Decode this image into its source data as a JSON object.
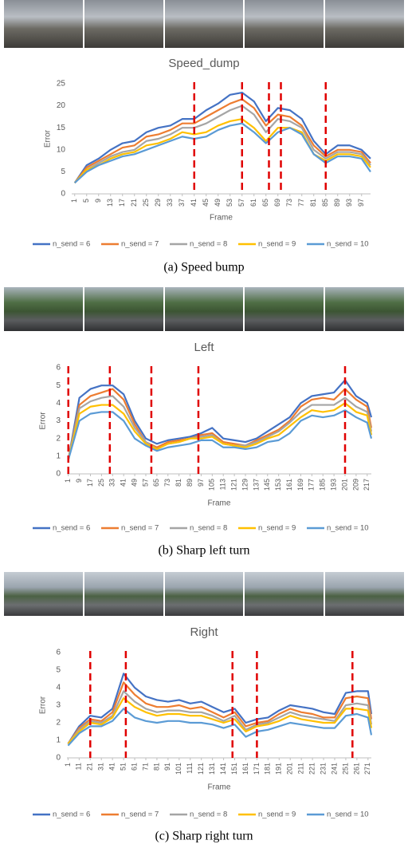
{
  "chart_data": [
    {
      "type": "line",
      "title": "Speed_dump",
      "caption": "(a) Speed bump",
      "x_label": "Frame",
      "y_label": "Error",
      "grid": false,
      "legend": "bottom",
      "x": [
        1,
        5,
        9,
        13,
        17,
        21,
        25,
        29,
        33,
        37,
        41,
        45,
        49,
        53,
        57,
        61,
        65,
        69,
        73,
        77,
        81,
        85,
        89,
        93,
        97,
        100
      ],
      "xlim": [
        0,
        100
      ],
      "ylim": [
        0,
        25
      ],
      "yticks": [
        0,
        5,
        10,
        15,
        20,
        25
      ],
      "xticks": [
        1,
        5,
        9,
        13,
        17,
        21,
        25,
        29,
        33,
        37,
        41,
        45,
        49,
        53,
        57,
        61,
        65,
        69,
        73,
        77,
        81,
        85,
        89,
        93,
        97
      ],
      "markers": {
        "values": [
          41,
          57,
          66,
          70,
          85
        ],
        "color": "#e00000"
      },
      "series": [
        {
          "name": "n_send = 6",
          "color": "#4472c4",
          "values": [
            2.5,
            6.5,
            8,
            10,
            11.5,
            12,
            14,
            15,
            15.5,
            17,
            17,
            19,
            20.5,
            22.5,
            23,
            21,
            16.5,
            19.5,
            19,
            17,
            12,
            9,
            11,
            11,
            10,
            8
          ]
        },
        {
          "name": "n_send = 7",
          "color": "#ed7d31",
          "values": [
            2.5,
            6,
            7.5,
            9,
            10.5,
            11,
            13,
            13.5,
            14.5,
            16,
            16,
            17.5,
            19,
            20.5,
            21.5,
            19.5,
            15.5,
            18,
            17.5,
            15.5,
            11,
            8.5,
            10,
            10,
            9.5,
            7
          ]
        },
        {
          "name": "n_send = 8",
          "color": "#a5a5a5",
          "values": [
            2.5,
            5.5,
            7,
            8.5,
            9.5,
            10,
            12,
            12.5,
            13.5,
            15,
            15,
            16,
            17.5,
            19,
            20,
            18,
            14,
            17,
            16.5,
            15,
            10,
            8,
            9.5,
            9.5,
            9,
            6.5
          ]
        },
        {
          "name": "n_send = 9",
          "color": "#ffc000",
          "values": [
            2.5,
            5.5,
            6.5,
            8,
            9,
            9.5,
            11,
            11.5,
            12.5,
            14,
            13.5,
            14,
            15.5,
            16.5,
            17,
            15,
            12,
            15,
            15,
            14,
            9,
            7.5,
            9,
            9,
            8.5,
            6
          ]
        },
        {
          "name": "n_send = 10",
          "color": "#5b9bd5",
          "values": [
            2.5,
            5,
            6.5,
            7.5,
            8.5,
            9,
            10,
            11,
            12,
            13,
            12.5,
            13,
            14.5,
            15.5,
            16,
            14,
            11.5,
            14,
            15,
            13.5,
            9,
            7,
            8.5,
            8.5,
            8,
            5
          ]
        }
      ]
    },
    {
      "type": "line",
      "title": "Left",
      "caption": "(b) Sharp left turn",
      "x_label": "Frame",
      "y_label": "Error",
      "grid": false,
      "legend": "bottom",
      "x": [
        1,
        9,
        17,
        25,
        33,
        41,
        49,
        57,
        65,
        73,
        81,
        89,
        97,
        105,
        113,
        121,
        129,
        137,
        145,
        153,
        161,
        169,
        177,
        185,
        193,
        201,
        209,
        217,
        220
      ],
      "xlim": [
        0,
        220
      ],
      "ylim": [
        0,
        6
      ],
      "yticks": [
        0,
        1,
        2,
        3,
        4,
        5,
        6
      ],
      "xticks": [
        1,
        9,
        17,
        25,
        33,
        41,
        49,
        57,
        65,
        73,
        81,
        89,
        97,
        105,
        113,
        121,
        129,
        137,
        145,
        153,
        161,
        169,
        177,
        185,
        193,
        201,
        209,
        217
      ],
      "markers": {
        "values": [
          1,
          31,
          61,
          95,
          201
        ],
        "color": "#e00000"
      },
      "series": [
        {
          "name": "n_send = 6",
          "color": "#4472c4",
          "values": [
            0.8,
            4.3,
            4.8,
            5,
            5,
            4.5,
            3,
            2,
            1.7,
            1.9,
            2,
            2.1,
            2.3,
            2.6,
            2,
            1.9,
            1.8,
            2,
            2.4,
            2.8,
            3.2,
            4,
            4.4,
            4.5,
            4.6,
            5.3,
            4.4,
            4,
            3.2
          ]
        },
        {
          "name": "n_send = 7",
          "color": "#ed7d31",
          "values": [
            0.8,
            3.9,
            4.4,
            4.6,
            4.8,
            4.2,
            2.8,
            1.8,
            1.5,
            1.8,
            1.9,
            2,
            2.2,
            2.3,
            1.8,
            1.7,
            1.6,
            1.9,
            2.2,
            2.5,
            3,
            3.8,
            4.2,
            4.3,
            4.2,
            4.8,
            4.2,
            3.8,
            2.6
          ]
        },
        {
          "name": "n_send = 8",
          "color": "#a5a5a5",
          "values": [
            0.8,
            3.7,
            4.1,
            4.3,
            4.4,
            3.8,
            2.6,
            1.8,
            1.4,
            1.7,
            1.8,
            2,
            2.1,
            2.2,
            1.7,
            1.6,
            1.6,
            1.8,
            2.1,
            2.4,
            2.9,
            3.5,
            3.9,
            3.9,
            3.9,
            4.3,
            3.8,
            3.5,
            2.4
          ]
        },
        {
          "name": "n_send = 9",
          "color": "#ffc000",
          "values": [
            0.8,
            3.4,
            3.8,
            3.9,
            3.9,
            3.4,
            2.4,
            1.7,
            1.4,
            1.7,
            1.8,
            2,
            2,
            2.1,
            1.7,
            1.6,
            1.5,
            1.7,
            2,
            2.2,
            2.7,
            3.2,
            3.6,
            3.5,
            3.6,
            4,
            3.5,
            3.3,
            2.2
          ]
        },
        {
          "name": "n_send = 10",
          "color": "#5b9bd5",
          "values": [
            0.8,
            3,
            3.4,
            3.5,
            3.5,
            3,
            2,
            1.6,
            1.3,
            1.5,
            1.6,
            1.7,
            1.9,
            1.9,
            1.5,
            1.5,
            1.4,
            1.5,
            1.8,
            1.9,
            2.3,
            3,
            3.3,
            3.2,
            3.3,
            3.6,
            3.2,
            2.9,
            2
          ]
        }
      ]
    },
    {
      "type": "line",
      "title": "Right",
      "caption": "(c) Sharp right turn",
      "x_label": "Frame",
      "y_label": "Error",
      "grid": false,
      "legend": "bottom",
      "x": [
        1,
        11,
        21,
        31,
        41,
        51,
        61,
        71,
        81,
        91,
        101,
        111,
        121,
        131,
        141,
        151,
        161,
        171,
        181,
        191,
        201,
        211,
        221,
        231,
        241,
        251,
        261,
        271,
        274
      ],
      "xlim": [
        0,
        274
      ],
      "ylim": [
        0,
        6
      ],
      "yticks": [
        0,
        1,
        2,
        3,
        4,
        5,
        6
      ],
      "xticks": [
        1,
        11,
        21,
        31,
        41,
        51,
        61,
        71,
        81,
        91,
        101,
        111,
        121,
        131,
        141,
        151,
        161,
        171,
        181,
        191,
        201,
        211,
        221,
        231,
        241,
        251,
        261,
        271
      ],
      "markers": {
        "values": [
          21,
          53,
          149,
          171,
          257
        ],
        "color": "#e00000"
      },
      "series": [
        {
          "name": "n_send = 6",
          "color": "#4472c4",
          "values": [
            0.8,
            1.8,
            2.4,
            2.3,
            2.8,
            4.8,
            4,
            3.5,
            3.3,
            3.2,
            3.3,
            3.1,
            3.2,
            2.9,
            2.6,
            2.8,
            2,
            2.2,
            2.3,
            2.7,
            3,
            2.9,
            2.8,
            2.6,
            2.5,
            3.7,
            3.8,
            3.8,
            2.5
          ]
        },
        {
          "name": "n_send = 7",
          "color": "#ed7d31",
          "values": [
            0.8,
            1.7,
            2.2,
            2.1,
            2.6,
            4.3,
            3.6,
            3.1,
            2.9,
            2.9,
            3,
            2.8,
            2.9,
            2.6,
            2.3,
            2.6,
            1.8,
            2,
            2.1,
            2.5,
            2.8,
            2.6,
            2.5,
            2.3,
            2.3,
            3.4,
            3.5,
            3.4,
            2.2
          ]
        },
        {
          "name": "n_send = 8",
          "color": "#a5a5a5",
          "values": [
            0.8,
            1.6,
            2.1,
            2,
            2.4,
            3.8,
            3.2,
            2.8,
            2.6,
            2.7,
            2.7,
            2.6,
            2.6,
            2.4,
            2.1,
            2.4,
            1.6,
            1.9,
            2,
            2.3,
            2.6,
            2.4,
            2.3,
            2.2,
            2.1,
            3,
            3.1,
            3,
            1.9
          ]
        },
        {
          "name": "n_send = 9",
          "color": "#ffc000",
          "values": [
            0.8,
            1.5,
            2,
            1.9,
            2.3,
            3.4,
            2.9,
            2.6,
            2.4,
            2.5,
            2.5,
            2.4,
            2.4,
            2.2,
            2,
            2.2,
            1.5,
            1.8,
            1.9,
            2.1,
            2.4,
            2.2,
            2.1,
            2,
            2,
            2.8,
            2.8,
            2.7,
            1.7
          ]
        },
        {
          "name": "n_send = 10",
          "color": "#5b9bd5",
          "values": [
            0.7,
            1.4,
            1.8,
            1.8,
            2.1,
            2.8,
            2.3,
            2.1,
            2,
            2.1,
            2.1,
            2,
            2,
            1.9,
            1.7,
            1.9,
            1.2,
            1.5,
            1.6,
            1.8,
            2,
            1.9,
            1.8,
            1.7,
            1.7,
            2.4,
            2.5,
            2.3,
            1.3
          ]
        }
      ]
    }
  ]
}
